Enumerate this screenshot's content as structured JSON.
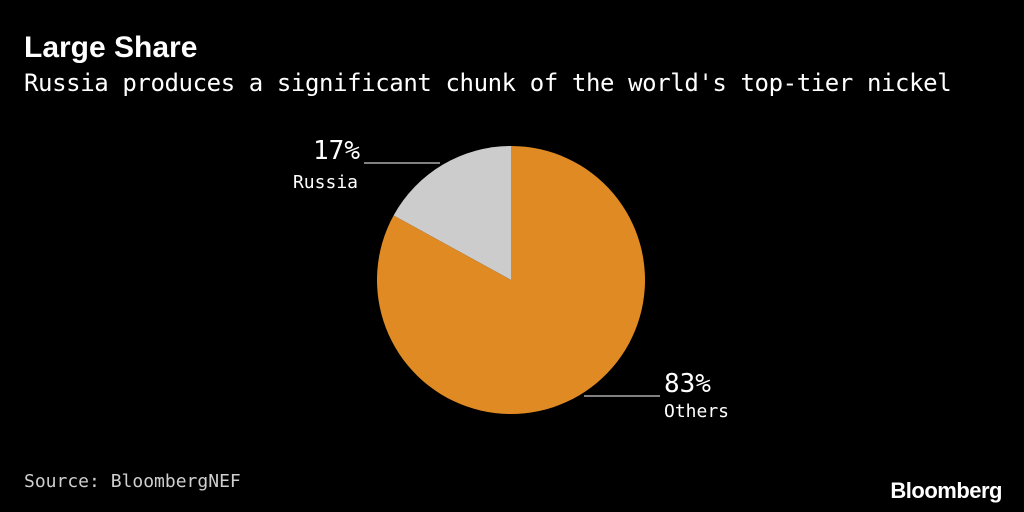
{
  "header": {
    "title": "Large Share",
    "subtitle": "Russia produces a significant chunk of the world's top-tier nickel"
  },
  "chart_data": {
    "type": "pie",
    "slices": [
      {
        "label": "Russia",
        "value": 17,
        "display": "17%",
        "color": "#cccccc"
      },
      {
        "label": "Others",
        "value": 83,
        "display": "83%",
        "color": "#e08a24"
      }
    ]
  },
  "footer": {
    "source": "Source: BloombergNEF",
    "brand": "Bloomberg"
  }
}
